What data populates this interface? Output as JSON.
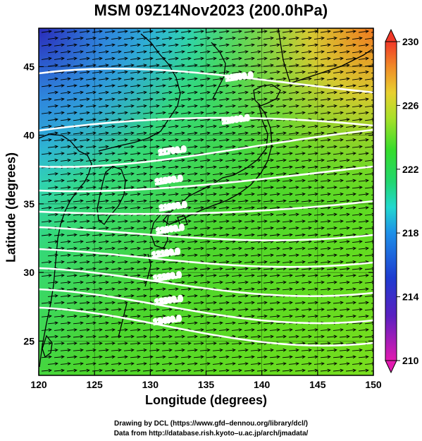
{
  "title": "MSM 09Z14Nov2023 (200.0hPa)",
  "x_axis": {
    "label": "Longitude (degrees)",
    "ticks": [
      "120",
      "125",
      "130",
      "135",
      "140",
      "145",
      "150"
    ],
    "range": [
      120,
      150
    ]
  },
  "y_axis": {
    "label": "Latitude  (degrees)",
    "ticks": [
      "25",
      "30",
      "35",
      "40",
      "45"
    ],
    "range": [
      22.5,
      47.8
    ]
  },
  "colorbar": {
    "ticks": [
      "230",
      "226",
      "222",
      "218",
      "214",
      "210"
    ],
    "range": [
      210,
      230
    ],
    "colors": [
      "#e01ab0",
      "#2020c0",
      "#1f5ce8",
      "#1fc8e8",
      "#22d680",
      "#36dc2c",
      "#7ee02a",
      "#c8e030",
      "#e8c830",
      "#f09028",
      "#f04028"
    ]
  },
  "contour_labels": [
    "11500.0",
    "11600.0",
    "11700.0",
    "11800.0",
    "11900.0",
    "12000.0",
    "12100.0",
    "12200.0",
    "12300.0",
    "12400.0"
  ],
  "footer": {
    "line1": "Drawing by DCL (https://www.gfd–dennou.org/library/dcl/)",
    "line2": "Data from http://database.rish.kyoto–u.ac.jp/arch/jmadata/"
  },
  "colors": {
    "contour": "#ffffff",
    "vector": "#000000",
    "coast": "#000000"
  }
}
